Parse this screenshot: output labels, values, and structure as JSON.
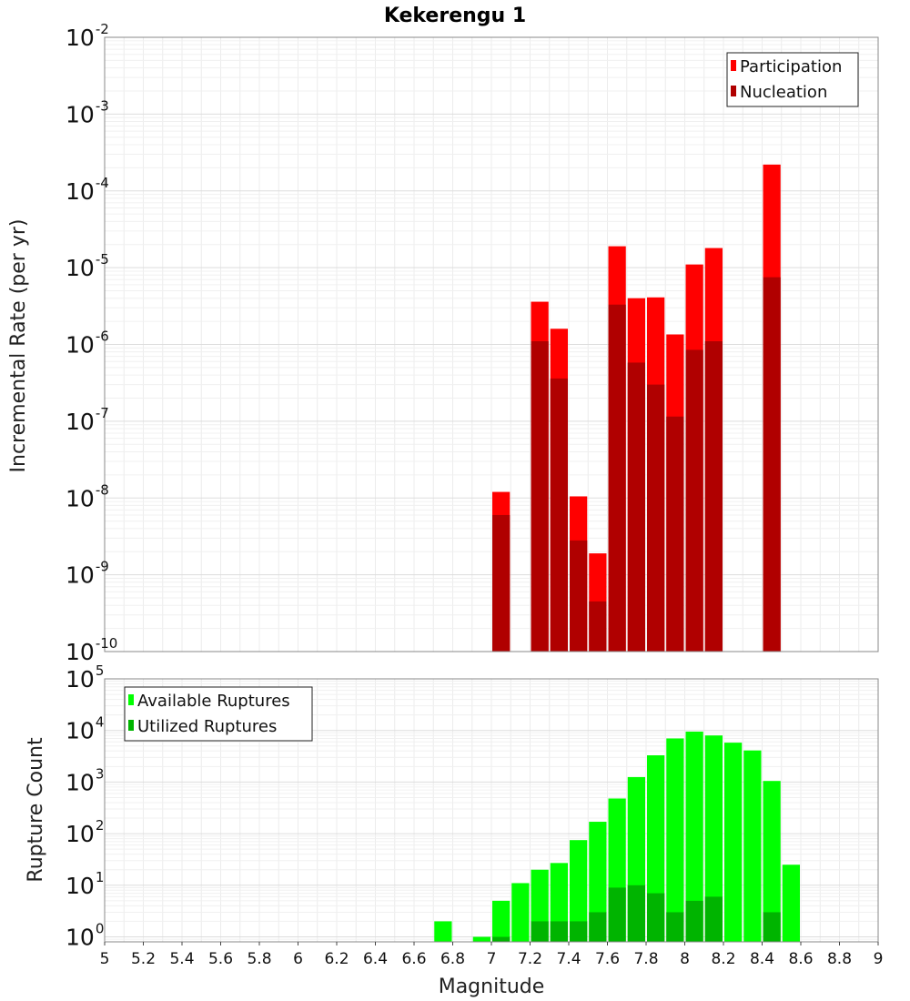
{
  "chart_data": [
    {
      "type": "bar",
      "title": "Kekerengu 1",
      "xlabel": "",
      "ylabel": "Incremental Rate (per yr)",
      "xlim": [
        5,
        9
      ],
      "ylim": [
        1e-10,
        0.01
      ],
      "yscale": "log",
      "grid": true,
      "legend_position": "top-right",
      "bin_width": 0.1,
      "series": [
        {
          "name": "Participation",
          "color": "#ff0000",
          "points": [
            {
              "x": 7.05,
              "y": 1.2e-08
            },
            {
              "x": 7.25,
              "y": 3.6e-06
            },
            {
              "x": 7.35,
              "y": 1.6e-06
            },
            {
              "x": 7.45,
              "y": 1.05e-08
            },
            {
              "x": 7.55,
              "y": 1.9e-09
            },
            {
              "x": 7.65,
              "y": 1.9e-05
            },
            {
              "x": 7.75,
              "y": 4e-06
            },
            {
              "x": 7.85,
              "y": 4.1e-06
            },
            {
              "x": 7.95,
              "y": 1.35e-06
            },
            {
              "x": 8.05,
              "y": 1.1e-05
            },
            {
              "x": 8.15,
              "y": 1.8e-05
            },
            {
              "x": 8.45,
              "y": 0.00022
            }
          ]
        },
        {
          "name": "Nucleation",
          "color": "#b00000",
          "points": [
            {
              "x": 7.05,
              "y": 6e-09
            },
            {
              "x": 7.25,
              "y": 1.1e-06
            },
            {
              "x": 7.35,
              "y": 3.6e-07
            },
            {
              "x": 7.45,
              "y": 2.8e-09
            },
            {
              "x": 7.55,
              "y": 4.5e-10
            },
            {
              "x": 7.65,
              "y": 3.3e-06
            },
            {
              "x": 7.75,
              "y": 5.8e-07
            },
            {
              "x": 7.85,
              "y": 3e-07
            },
            {
              "x": 7.95,
              "y": 1.15e-07
            },
            {
              "x": 8.05,
              "y": 8.5e-07
            },
            {
              "x": 8.15,
              "y": 1.1e-06
            },
            {
              "x": 8.45,
              "y": 7.5e-06
            }
          ]
        }
      ]
    },
    {
      "type": "bar",
      "title": "",
      "xlabel": "Magnitude",
      "ylabel": "Rupture Count",
      "xlim": [
        5,
        9
      ],
      "ylim": [
        0.8,
        100000.0
      ],
      "yscale": "log",
      "grid": true,
      "legend_position": "top-left",
      "bin_width": 0.1,
      "xticks": [
        "5",
        "5.2",
        "5.4",
        "5.6",
        "5.8",
        "6",
        "6.2",
        "6.4",
        "6.6",
        "6.8",
        "7",
        "7.2",
        "7.4",
        "7.6",
        "7.8",
        "8",
        "8.2",
        "8.4",
        "8.6",
        "8.8",
        "9"
      ],
      "series": [
        {
          "name": "Available Ruptures",
          "color": "#00ff00",
          "points": [
            {
              "x": 6.75,
              "y": 2
            },
            {
              "x": 6.95,
              "y": 1
            },
            {
              "x": 7.05,
              "y": 5
            },
            {
              "x": 7.15,
              "y": 11
            },
            {
              "x": 7.25,
              "y": 20
            },
            {
              "x": 7.35,
              "y": 27
            },
            {
              "x": 7.45,
              "y": 75
            },
            {
              "x": 7.55,
              "y": 170
            },
            {
              "x": 7.65,
              "y": 480
            },
            {
              "x": 7.75,
              "y": 1250
            },
            {
              "x": 7.85,
              "y": 3300
            },
            {
              "x": 7.95,
              "y": 7000
            },
            {
              "x": 8.05,
              "y": 9500
            },
            {
              "x": 8.15,
              "y": 8000
            },
            {
              "x": 8.25,
              "y": 5800
            },
            {
              "x": 8.35,
              "y": 4100
            },
            {
              "x": 8.45,
              "y": 1050
            },
            {
              "x": 8.55,
              "y": 25
            }
          ]
        },
        {
          "name": "Utilized Ruptures",
          "color": "#00b400",
          "points": [
            {
              "x": 7.05,
              "y": 1
            },
            {
              "x": 7.25,
              "y": 2
            },
            {
              "x": 7.35,
              "y": 2
            },
            {
              "x": 7.45,
              "y": 2
            },
            {
              "x": 7.55,
              "y": 3
            },
            {
              "x": 7.65,
              "y": 9
            },
            {
              "x": 7.75,
              "y": 10
            },
            {
              "x": 7.85,
              "y": 7
            },
            {
              "x": 7.95,
              "y": 3
            },
            {
              "x": 8.05,
              "y": 5
            },
            {
              "x": 8.15,
              "y": 6
            },
            {
              "x": 8.45,
              "y": 3
            }
          ]
        }
      ]
    }
  ]
}
